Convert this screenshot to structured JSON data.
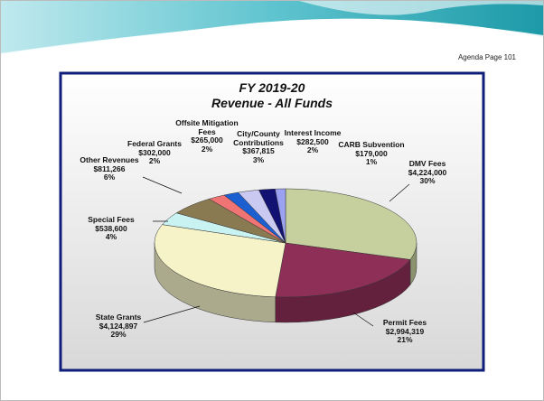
{
  "page": {
    "agenda": "Agenda Page 101"
  },
  "chart_data": {
    "type": "pie3d",
    "title": "FY 2019-20",
    "subtitle": "Revenue - All Funds",
    "categories": [
      "DMV Fees",
      "Permit Fees",
      "State Grants",
      "Special Fees",
      "Other Revenues",
      "Federal Grants",
      "Offsite Mitigation Fees",
      "City/County Contributions",
      "Interest Income",
      "CARB Subvention"
    ],
    "values": [
      4224000,
      2994319,
      4124897,
      538600,
      811266,
      302000,
      265000,
      367815,
      282500,
      179000
    ],
    "value_labels": [
      "$4,224,000",
      "$2,994,319",
      "$4,124,897",
      "$538,600",
      "$811,266",
      "$302,000",
      "$265,000",
      "$367,815",
      "$282,500",
      "$179,000"
    ],
    "percent_labels": [
      "30%",
      "21%",
      "29%",
      "4%",
      "6%",
      "2%",
      "2%",
      "3%",
      "2%",
      "1%"
    ],
    "colors": [
      "#c5d09e",
      "#8e2f57",
      "#f6f3c9",
      "#c9f3f3",
      "#8a7a52",
      "#f07474",
      "#1c5fd0",
      "#c9c9f2",
      "#121272",
      "#9ca2f2"
    ]
  }
}
